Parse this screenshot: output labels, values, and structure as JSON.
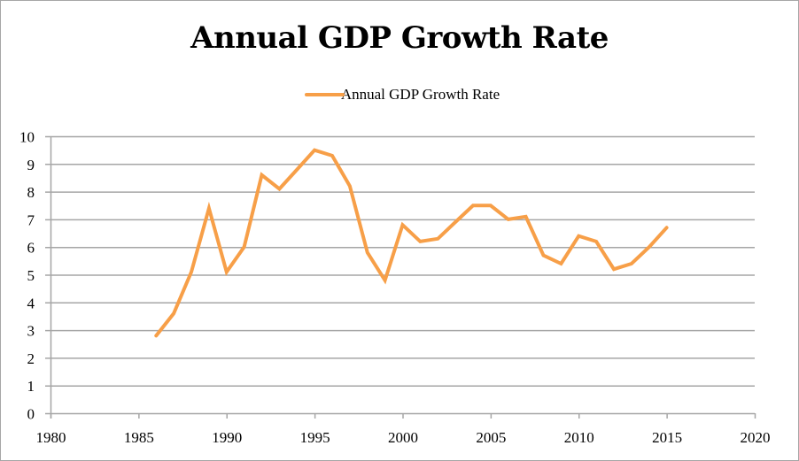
{
  "chart_data": {
    "type": "line",
    "title": "Annual GDP Growth Rate",
    "xlabel": "",
    "ylabel": "",
    "xlim": [
      1980,
      2020
    ],
    "ylim": [
      0,
      10
    ],
    "xticks": [
      1980,
      1985,
      1990,
      1995,
      2000,
      2005,
      2010,
      2015,
      2020
    ],
    "yticks": [
      0,
      1,
      2,
      3,
      4,
      5,
      6,
      7,
      8,
      9,
      10
    ],
    "grid": "horizontal",
    "legend_position": "top-center",
    "series": [
      {
        "name": "Annual GDP Growth Rate",
        "color": "#f79f48",
        "x": [
          1986,
          1987,
          1988,
          1989,
          1990,
          1991,
          1992,
          1993,
          1994,
          1995,
          1996,
          1997,
          1998,
          1999,
          2000,
          2001,
          2002,
          2003,
          2004,
          2005,
          2006,
          2007,
          2008,
          2009,
          2010,
          2011,
          2012,
          2013,
          2014,
          2015
        ],
        "values": [
          2.8,
          3.6,
          5.1,
          7.4,
          5.1,
          6.0,
          8.6,
          8.1,
          8.8,
          9.5,
          9.3,
          8.2,
          5.8,
          4.8,
          6.8,
          6.2,
          6.3,
          6.9,
          7.5,
          7.5,
          7.0,
          7.1,
          5.7,
          5.4,
          6.4,
          6.2,
          5.2,
          5.4,
          6.0,
          6.7
        ]
      }
    ]
  },
  "colors": {
    "line": "#f79f48",
    "grid": "#a6a6a6",
    "border": "#a6a6a6"
  }
}
